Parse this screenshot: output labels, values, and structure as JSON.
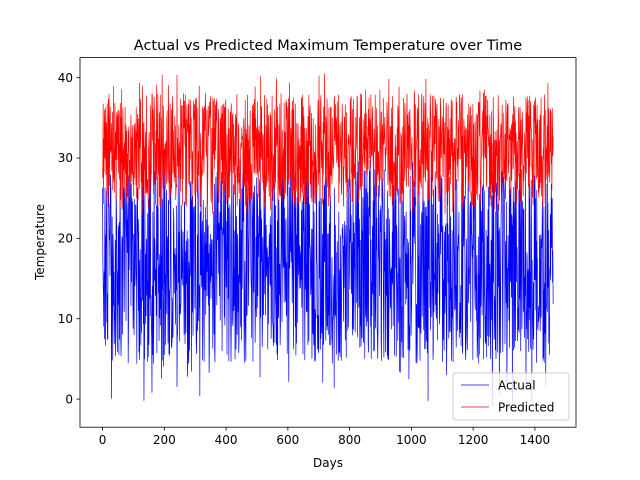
{
  "chart_data": {
    "type": "line",
    "title": "Actual vs Predicted Maximum Temperature over Time",
    "xlabel": "Days",
    "ylabel": "Temperature",
    "xlim": [
      -73,
      1533
    ],
    "ylim": [
      -3.5,
      42.5
    ],
    "x_ticks": [
      0,
      200,
      400,
      600,
      800,
      1000,
      1200,
      1400
    ],
    "y_ticks": [
      0,
      10,
      20,
      30,
      40
    ],
    "grid": false,
    "legend_position": "lower-right",
    "n_points": 1460,
    "series": [
      {
        "name": "Actual",
        "color": "#0000ff",
        "range_typical": [
          5,
          28
        ],
        "min": -1,
        "max": 30
      },
      {
        "name": "Predicted",
        "color": "#ff0000",
        "range_typical": [
          24,
          38
        ],
        "min": 23,
        "max": 40.5
      }
    ]
  }
}
